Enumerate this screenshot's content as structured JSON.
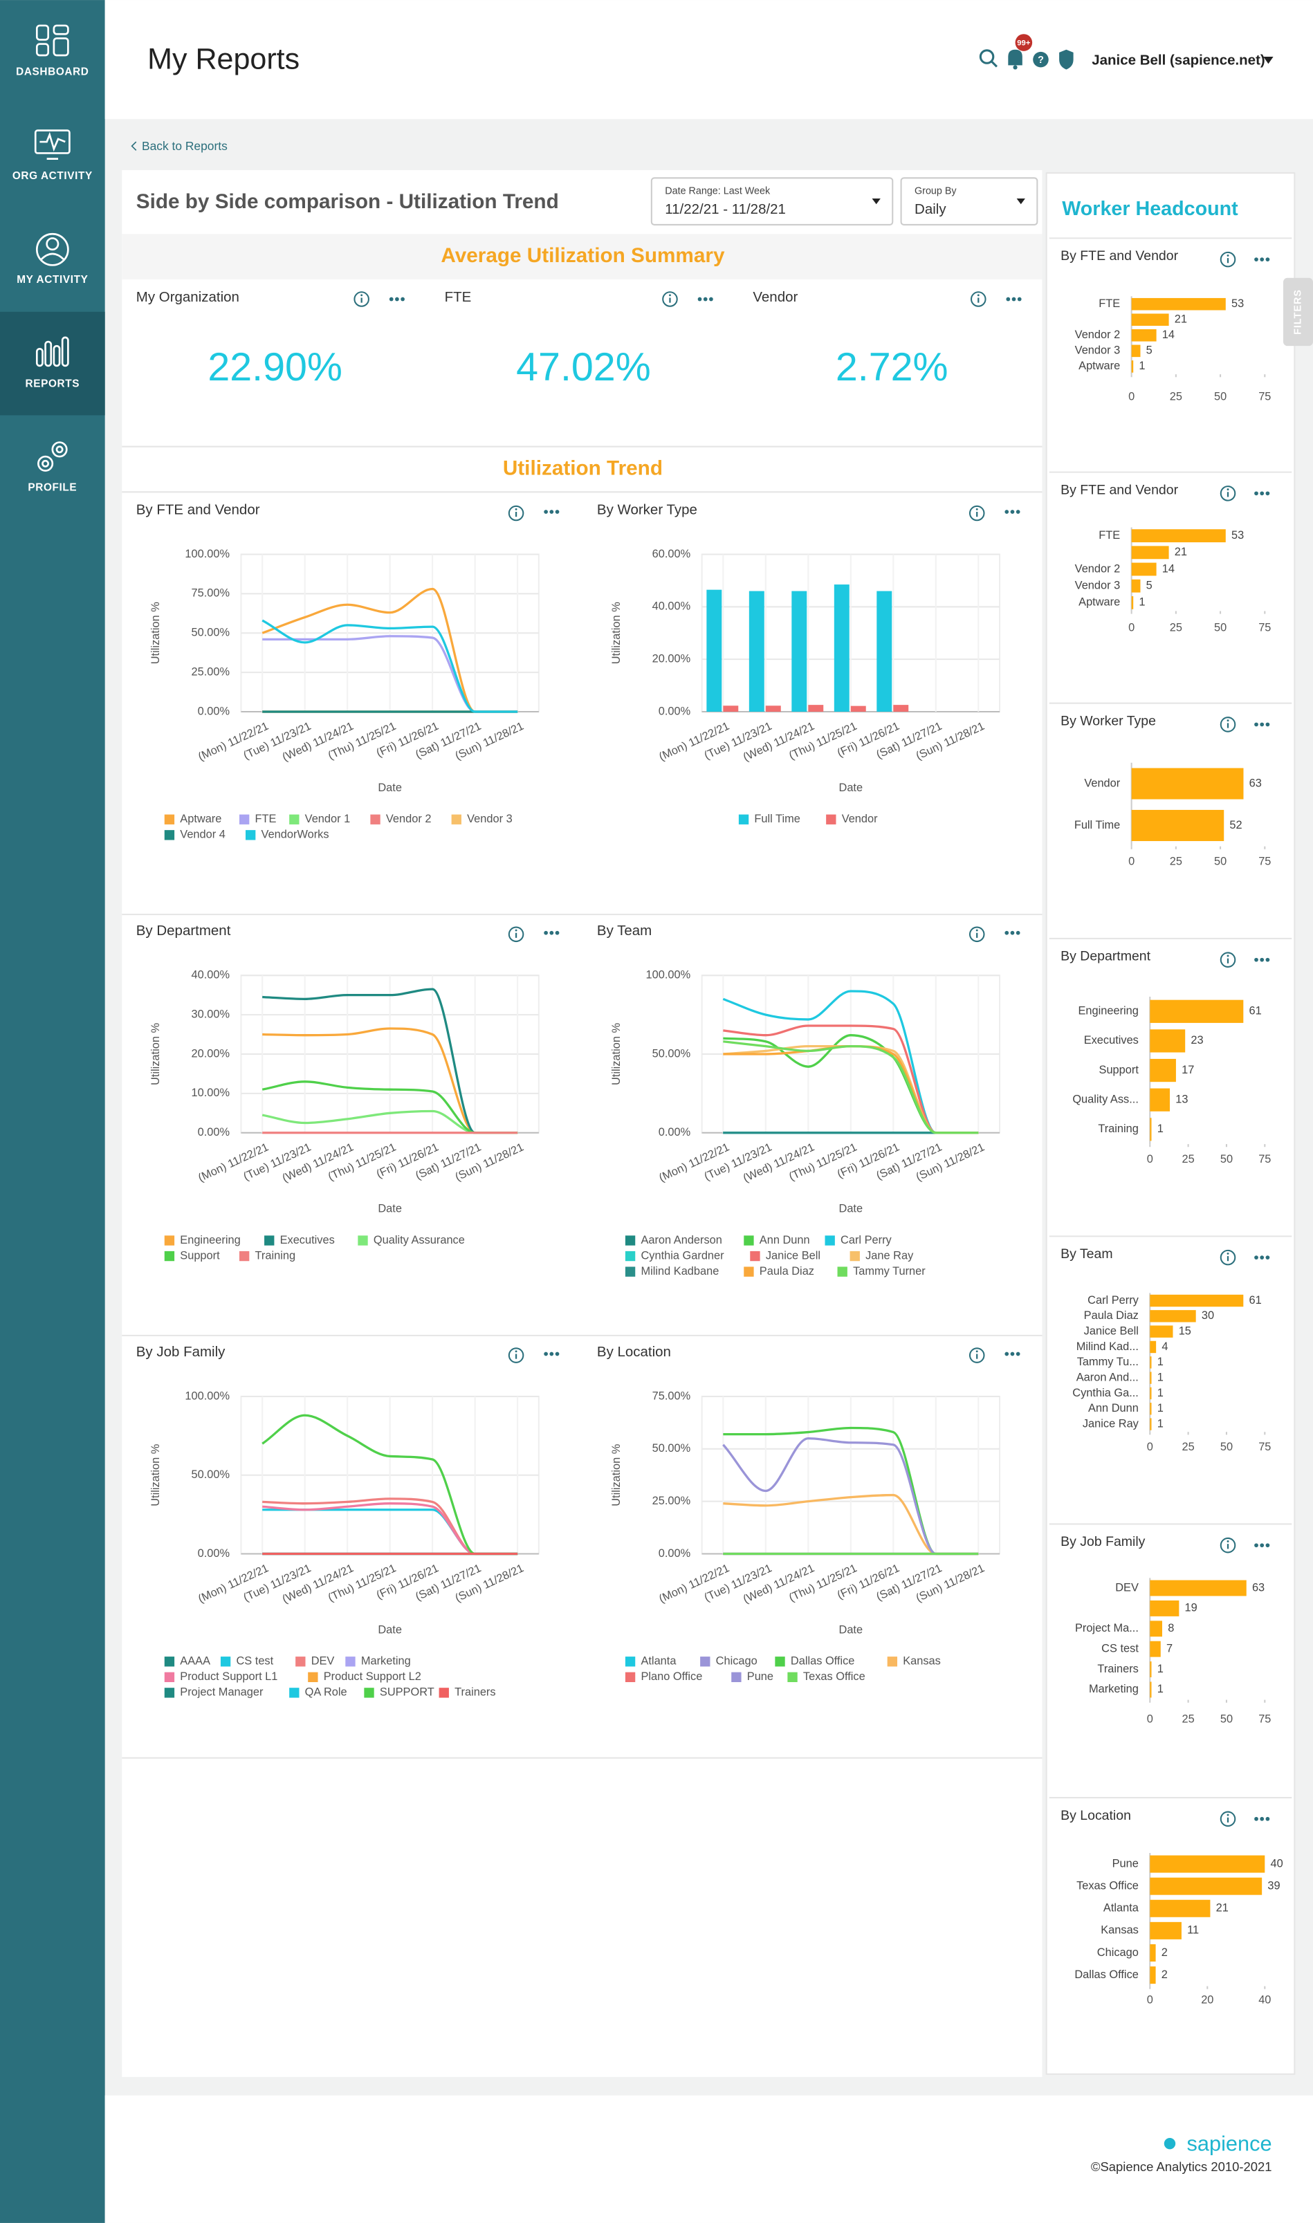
{
  "sidebar": {
    "items": [
      "DASHBOARD",
      "ORG ACTIVITY",
      "MY ACTIVITY",
      "REPORTS",
      "PROFILE"
    ],
    "active": 3
  },
  "header": {
    "title": "My Reports",
    "notifications": "99+",
    "user": "Janice Bell (sapience.net)"
  },
  "breadcrumb": "Back to Reports",
  "report": {
    "title": "Side by Side comparison - Utilization Trend",
    "date_range": {
      "label": "Date Range: Last Week",
      "value": "11/22/21 - 11/28/21"
    },
    "group_by": {
      "label": "Group By",
      "value": "Daily"
    }
  },
  "summary": {
    "title": "Average Utilization Summary",
    "cards": [
      {
        "name": "My Organization",
        "value": 22.9,
        "value_label": "22.90%"
      },
      {
        "name": "FTE",
        "value": 47.02,
        "value_label": "47.02%"
      },
      {
        "name": "Vendor",
        "value": 2.72,
        "value_label": "2.72%"
      }
    ]
  },
  "trend": {
    "title": "Utilization Trend",
    "charts": [
      {
        "type": "line",
        "title": "By FTE and Vendor",
        "y_label": "Utilization %",
        "x_label": "Date",
        "categories": [
          "(Mon) 11/22/21",
          "(Tue) 11/23/21",
          "(Wed) 11/24/21",
          "(Thu) 11/25/21",
          "(Fri) 11/26/21",
          "(Sat) 11/27/21",
          "(Sun) 11/28/21"
        ],
        "ylim": [
          0,
          100
        ],
        "yticks": [
          {
            "value": 0,
            "label": "0.00%"
          },
          {
            "value": 25,
            "label": "25.00%"
          },
          {
            "value": 50,
            "label": "50.00%"
          },
          {
            "value": 75,
            "label": "75.00%"
          },
          {
            "value": 100,
            "label": "100.00%"
          }
        ],
        "series": [
          {
            "name": "Aptware",
            "color": "#f9a83b",
            "values": [
              50,
              60,
              68,
              63,
              78,
              0,
              0
            ]
          },
          {
            "name": "FTE",
            "color": "#aaa4f2",
            "values": [
              46,
              46,
              46,
              48,
              47,
              0,
              0
            ]
          },
          {
            "name": "Vendor 1",
            "color": "#7ee87a",
            "values": [
              0,
              0,
              0,
              0,
              0,
              0,
              0
            ]
          },
          {
            "name": "Vendor 2",
            "color": "#f08080",
            "values": [
              0,
              0,
              0,
              0,
              0,
              0,
              0
            ]
          },
          {
            "name": "Vendor 3",
            "color": "#f7c06a",
            "values": [
              0,
              0,
              0,
              0,
              0,
              0,
              0
            ]
          },
          {
            "name": "Vendor 4",
            "color": "#1f8a82",
            "values": [
              0,
              0,
              0,
              0,
              0,
              0,
              0
            ]
          },
          {
            "name": "VendorWorks",
            "color": "#1ec8e0",
            "values": [
              58,
              44,
              55,
              53,
              54,
              0,
              0
            ]
          }
        ]
      },
      {
        "type": "bar",
        "title": "By Worker Type",
        "y_label": "Utilization %",
        "x_label": "Date",
        "categories": [
          "(Mon) 11/22/21",
          "(Tue) 11/23/21",
          "(Wed) 11/24/21",
          "(Thu) 11/25/21",
          "(Fri) 11/26/21",
          "(Sat) 11/27/21",
          "(Sun) 11/28/21"
        ],
        "ylim": [
          0,
          60
        ],
        "yticks": [
          {
            "value": 0,
            "label": "0.00%"
          },
          {
            "value": 20,
            "label": "20.00%"
          },
          {
            "value": 40,
            "label": "40.00%"
          },
          {
            "value": 60,
            "label": "60.00%"
          }
        ],
        "series": [
          {
            "name": "Full Time",
            "color": "#1ec8e0",
            "values": [
              46.5,
              46,
              46,
              48.5,
              46,
              0,
              0
            ]
          },
          {
            "name": "Vendor",
            "color": "#f07070",
            "values": [
              2.3,
              2.3,
              2.6,
              2.2,
              2.6,
              0,
              0
            ]
          }
        ]
      },
      {
        "type": "line",
        "title": "By Department",
        "y_label": "Utilization %",
        "x_label": "Date",
        "categories": [
          "(Mon) 11/22/21",
          "(Tue) 11/23/21",
          "(Wed) 11/24/21",
          "(Thu) 11/25/21",
          "(Fri) 11/26/21",
          "(Sat) 11/27/21",
          "(Sun) 11/28/21"
        ],
        "ylim": [
          0,
          40
        ],
        "yticks": [
          {
            "value": 0,
            "label": "0.00%"
          },
          {
            "value": 10,
            "label": "10.00%"
          },
          {
            "value": 20,
            "label": "20.00%"
          },
          {
            "value": 30,
            "label": "30.00%"
          },
          {
            "value": 40,
            "label": "40.00%"
          }
        ],
        "series": [
          {
            "name": "Engineering",
            "color": "#f9a83b",
            "values": [
              25,
              24.8,
              25,
              26.5,
              25,
              0,
              0
            ]
          },
          {
            "name": "Executives",
            "color": "#1f8a82",
            "values": [
              34.5,
              34,
              35,
              35,
              36.5,
              0,
              0
            ]
          },
          {
            "name": "Quality Assurance",
            "color": "#7ee87a",
            "values": [
              4.5,
              2.5,
              3.5,
              5,
              5.5,
              0,
              0
            ]
          },
          {
            "name": "Support",
            "color": "#4fd04a",
            "values": [
              11,
              13,
              11.5,
              11,
              10.5,
              0,
              0
            ]
          },
          {
            "name": "Training",
            "color": "#f08080",
            "values": [
              0,
              0,
              0,
              0,
              0,
              0,
              0
            ]
          }
        ]
      },
      {
        "type": "line",
        "title": "By Team",
        "y_label": "Utilization %",
        "x_label": "Date",
        "categories": [
          "(Mon) 11/22/21",
          "(Tue) 11/23/21",
          "(Wed) 11/24/21",
          "(Thu) 11/25/21",
          "(Fri) 11/26/21",
          "(Sat) 11/27/21",
          "(Sun) 11/28/21"
        ],
        "ylim": [
          0,
          100
        ],
        "yticks": [
          {
            "value": 0,
            "label": "0.00%"
          },
          {
            "value": 50,
            "label": "50.00%"
          },
          {
            "value": 100,
            "label": "100.00%"
          }
        ],
        "series": [
          {
            "name": "Aaron Anderson",
            "color": "#1f8a82",
            "values": [
              0,
              0,
              0,
              0,
              0,
              0,
              0
            ]
          },
          {
            "name": "Ann Dunn",
            "color": "#4fd04a",
            "values": [
              60,
              58,
              42,
              62,
              48,
              0,
              0
            ]
          },
          {
            "name": "Carl Perry",
            "color": "#1ec8e0",
            "values": [
              85,
              75,
              72,
              90,
              82,
              0,
              0
            ]
          },
          {
            "name": "Cynthia Gardner",
            "color": "#29d0c9",
            "values": [
              0,
              0,
              0,
              0,
              0,
              0,
              0
            ]
          },
          {
            "name": "Janice Bell",
            "color": "#f07070",
            "values": [
              65,
              62,
              68,
              68,
              66,
              0,
              0
            ]
          },
          {
            "name": "Jane Ray",
            "color": "#f7c06a",
            "values": [
              50,
              52,
              55,
              55,
              52,
              0,
              0
            ]
          },
          {
            "name": "Milind Kadbane",
            "color": "#2a8f8a",
            "values": [
              0,
              0,
              0,
              0,
              0,
              0,
              0
            ]
          },
          {
            "name": "Paula Diaz",
            "color": "#f9a83b",
            "values": [
              50,
              50,
              52,
              55,
              50,
              0,
              0
            ]
          },
          {
            "name": "Tammy Turner",
            "color": "#6fdc5e",
            "values": [
              58,
              55,
              52,
              55,
              48,
              0,
              0
            ]
          }
        ]
      },
      {
        "type": "line",
        "title": "By Job Family",
        "y_label": "Utilization %",
        "x_label": "Date",
        "categories": [
          "(Mon) 11/22/21",
          "(Tue) 11/23/21",
          "(Wed) 11/24/21",
          "(Thu) 11/25/21",
          "(Fri) 11/26/21",
          "(Sat) 11/27/21",
          "(Sun) 11/28/21"
        ],
        "ylim": [
          0,
          100
        ],
        "yticks": [
          {
            "value": 0,
            "label": "0.00%"
          },
          {
            "value": 50,
            "label": "50.00%"
          },
          {
            "value": 100,
            "label": "100.00%"
          }
        ],
        "series": [
          {
            "name": "AAAA",
            "color": "#1f8a82",
            "values": [
              0,
              0,
              0,
              0,
              0,
              0,
              0
            ]
          },
          {
            "name": "CS test",
            "color": "#1ec8e0",
            "values": [
              28,
              28,
              28,
              28,
              28,
              0,
              0
            ]
          },
          {
            "name": "DEV",
            "color": "#f08080",
            "values": [
              33,
              32,
              33,
              35,
              33,
              0,
              0
            ]
          },
          {
            "name": "Marketing",
            "color": "#aaa4f2",
            "values": [
              0,
              0,
              0,
              0,
              0,
              0,
              0
            ]
          },
          {
            "name": "Product Support L1",
            "color": "#f07aa0",
            "values": [
              30,
              28,
              30,
              32,
              30,
              0,
              0
            ]
          },
          {
            "name": "Product Support L2",
            "color": "#f9a83b",
            "values": [
              0,
              0,
              0,
              0,
              0,
              0,
              0
            ]
          },
          {
            "name": "Project Manager",
            "color": "#1f8a82",
            "values": [
              0,
              0,
              0,
              0,
              0,
              0,
              0
            ]
          },
          {
            "name": "QA Role",
            "color": "#1ec8e0",
            "values": [
              0,
              0,
              0,
              0,
              0,
              0,
              0
            ]
          },
          {
            "name": "SUPPORT",
            "color": "#4fd04a",
            "values": [
              70,
              88,
              75,
              62,
              60,
              0,
              0
            ]
          },
          {
            "name": "Trainers",
            "color": "#f06060",
            "values": [
              0,
              0,
              0,
              0,
              0,
              0,
              0
            ]
          }
        ]
      },
      {
        "type": "line",
        "title": "By Location",
        "y_label": "Utilization %",
        "x_label": "Date",
        "categories": [
          "(Mon) 11/22/21",
          "(Tue) 11/23/21",
          "(Wed) 11/24/21",
          "(Thu) 11/25/21",
          "(Fri) 11/26/21",
          "(Sat) 11/27/21",
          "(Sun) 11/28/21"
        ],
        "ylim": [
          0,
          75
        ],
        "yticks": [
          {
            "value": 0,
            "label": "0.00%"
          },
          {
            "value": 25,
            "label": "25.00%"
          },
          {
            "value": 50,
            "label": "50.00%"
          },
          {
            "value": 75,
            "label": "75.00%"
          }
        ],
        "series": [
          {
            "name": "Atlanta",
            "color": "#1ec8e0",
            "values": [
              0,
              0,
              0,
              0,
              0,
              0,
              0
            ]
          },
          {
            "name": "Chicago",
            "color": "#9a94d8",
            "values": [
              0,
              0,
              0,
              0,
              0,
              0,
              0
            ]
          },
          {
            "name": "Dallas Office",
            "color": "#4fd04a",
            "values": [
              57,
              57,
              58,
              60,
              58,
              0,
              0
            ]
          },
          {
            "name": "Kansas",
            "color": "#f9b860",
            "values": [
              24,
              23,
              25,
              27,
              28,
              0,
              0
            ]
          },
          {
            "name": "Plano Office",
            "color": "#f07070",
            "values": [
              0,
              0,
              0,
              0,
              0,
              0,
              0
            ]
          },
          {
            "name": "Pune",
            "color": "#9a94d8",
            "values": [
              52,
              30,
              55,
              53,
              52,
              0,
              0
            ]
          },
          {
            "name": "Texas Office",
            "color": "#6fdc5e",
            "values": [
              0,
              0,
              0,
              0,
              0,
              0,
              0
            ]
          }
        ]
      }
    ]
  },
  "headcount": {
    "title": "Worker Headcount",
    "charts": [
      {
        "type": "hbar",
        "title": "By FTE and Vendor",
        "color": "#ffad0d",
        "categories": [
          "FTE",
          null,
          "Vendor 2",
          "Vendor 3",
          "Aptware"
        ],
        "values": [
          53,
          21,
          14,
          5,
          1
        ],
        "xlim": [
          0,
          75
        ],
        "xticks": [
          0,
          25,
          50,
          75
        ]
      },
      {
        "type": "hbar",
        "title": "By FTE and Vendor",
        "color": "#ffad0d",
        "categories": [
          "FTE",
          null,
          "Vendor 2",
          "Vendor 3",
          "Aptware"
        ],
        "values": [
          53,
          21,
          14,
          5,
          1
        ],
        "xlim": [
          0,
          75
        ],
        "xticks": [
          0,
          25,
          50,
          75
        ]
      },
      {
        "type": "hbar",
        "title": "By Worker Type",
        "color": "#ffad0d",
        "categories": [
          "Vendor",
          "Full Time"
        ],
        "values": [
          63,
          52
        ],
        "xlim": [
          0,
          75
        ],
        "xticks": [
          0,
          25,
          50,
          75
        ]
      },
      {
        "type": "hbar",
        "title": "By Department",
        "color": "#ffad0d",
        "categories": [
          "Engineering",
          "Executives",
          "Support",
          "Quality Ass...",
          "Training"
        ],
        "values": [
          61,
          23,
          17,
          13,
          1
        ],
        "xlim": [
          0,
          75
        ],
        "xticks": [
          0,
          25,
          50,
          75
        ]
      },
      {
        "type": "hbar",
        "title": "By Team",
        "color": "#ffad0d",
        "categories": [
          "Carl Perry",
          "Paula Diaz",
          "Janice Bell",
          "Milind Kad...",
          "Tammy Tu...",
          "Aaron And...",
          "Cynthia Ga...",
          "Ann Dunn",
          "Janice Ray"
        ],
        "values": [
          61,
          30,
          15,
          4,
          1,
          1,
          1,
          1,
          1
        ],
        "xlim": [
          0,
          75
        ],
        "xticks": [
          0,
          25,
          50,
          75
        ]
      },
      {
        "type": "hbar",
        "title": "By Job Family",
        "color": "#ffad0d",
        "categories": [
          "DEV",
          null,
          "Project Ma...",
          "CS test",
          "Trainers",
          "Marketing"
        ],
        "values": [
          63,
          19,
          8,
          7,
          1,
          1
        ],
        "xlim": [
          0,
          75
        ],
        "xticks": [
          0,
          25,
          50,
          75
        ]
      },
      {
        "type": "hbar",
        "title": "By Location",
        "color": "#ffad0d",
        "categories": [
          "Pune",
          "Texas Office",
          "Atlanta",
          "Kansas",
          "Chicago",
          "Dallas Office"
        ],
        "values": [
          40,
          39,
          21,
          11,
          2,
          2
        ],
        "xlim": [
          0,
          40
        ],
        "xticks": [
          0,
          20,
          40
        ]
      }
    ]
  },
  "filters": "FILTERS",
  "footer": {
    "brand": "sapience",
    "copyright": "©Sapience Analytics 2010-2021"
  }
}
